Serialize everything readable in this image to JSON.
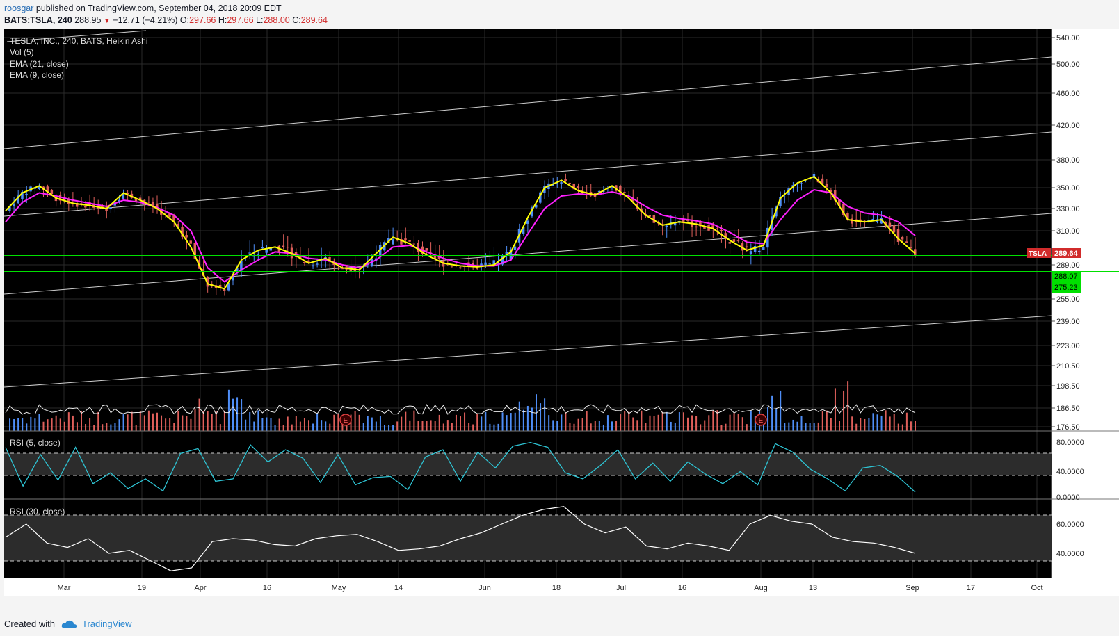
{
  "header": {
    "username": "roosgar",
    "published_text": "published on TradingView.com, September 04, 2018 20:09 EDT",
    "symbol": "BATS:TSLA, 240",
    "last": "288.95",
    "change": "−12.71 (−4.21%)",
    "o_label": "O:",
    "o_value": "297.66",
    "h_label": "H:",
    "h_value": "297.66",
    "l_label": "L:",
    "l_value": "288.00",
    "c_label": "C:",
    "c_value": "289.64"
  },
  "legend": {
    "main": "TESLA, INC., 240, BATS, Heikin Ashi",
    "vol": "Vol (5)",
    "ema21": "EMA (21, close)",
    "ema9": "EMA (9, close)",
    "rsi5": "RSI (5, close)",
    "rsi30": "RSI (30, close)"
  },
  "colors": {
    "background": "#000000",
    "up": "#4f8ef7",
    "down": "#e0605b",
    "ema9": "#ffff00",
    "ema21": "#ff20ff",
    "support": "#00e000",
    "rsi5": "#2ec4d4",
    "rsi30": "#ffffff"
  },
  "price_axis": {
    "ticks": [
      "540.00",
      "500.00",
      "460.00",
      "420.00",
      "380.00",
      "350.00",
      "330.00",
      "310.00",
      "289.00",
      "255.00",
      "239.00",
      "223.00",
      "210.50",
      "198.50",
      "186.50",
      "176.50"
    ],
    "tag_symbol": "TSLA",
    "tag_price": "289.64",
    "green_tag_1": "288.07",
    "green_tag_2": "275.23"
  },
  "rsi5_axis": [
    "80.0000",
    "40.0000",
    "0.0000"
  ],
  "rsi30_axis": [
    "60.0000",
    "40.0000"
  ],
  "time_axis": [
    "Mar",
    "19",
    "Apr",
    "16",
    "May",
    "14",
    "Jun",
    "18",
    "Jul",
    "16",
    "Aug",
    "13",
    "Sep",
    "17",
    "Oct"
  ],
  "earnings_marker": "E",
  "chart_data": {
    "type": "candlestick",
    "title": "TESLA, INC., 240, BATS, Heikin Ashi",
    "series": [
      {
        "name": "EMA (9, close)",
        "values": [
          328,
          345,
          352,
          340,
          335,
          333,
          330,
          345,
          338,
          330,
          318,
          300,
          270,
          265,
          292,
          298,
          300,
          296,
          290,
          293,
          286,
          284,
          296,
          306,
          302,
          295,
          290,
          288,
          287,
          289,
          297,
          322,
          350,
          358,
          347,
          343,
          352,
          340,
          324,
          315,
          318,
          316,
          312,
          304,
          298,
          301,
          340,
          355,
          362,
          345,
          320,
          318,
          320,
          305,
          296
        ]
      },
      {
        "name": "EMA (21, close)",
        "values": [
          318,
          336,
          345,
          342,
          338,
          335,
          332,
          338,
          336,
          331,
          324,
          310,
          286,
          272,
          284,
          292,
          297,
          296,
          293,
          292,
          289,
          286,
          292,
          300,
          301,
          297,
          293,
          290,
          288,
          288,
          292,
          308,
          330,
          342,
          344,
          343,
          346,
          342,
          332,
          324,
          321,
          319,
          316,
          309,
          303,
          302,
          320,
          338,
          348,
          345,
          332,
          326,
          324,
          318,
          307
        ]
      },
      {
        "name": "RSI (5, close)",
        "values": [
          82,
          18,
          70,
          28,
          82,
          22,
          40,
          14,
          30,
          10,
          72,
          80,
          26,
          30,
          86,
          58,
          78,
          64,
          24,
          70,
          20,
          32,
          34,
          12,
          66,
          78,
          26,
          74,
          48,
          84,
          90,
          82,
          40,
          30,
          52,
          78,
          30,
          56,
          26,
          58,
          38,
          22,
          42,
          20,
          88,
          74,
          46,
          30,
          10,
          48,
          52,
          34,
          8
        ]
      },
      {
        "name": "RSI (30, close)",
        "values": [
          51,
          60,
          47,
          44,
          50,
          40,
          42,
          35,
          28,
          30,
          48,
          50,
          49,
          46,
          45,
          50,
          52,
          53,
          48,
          42,
          43,
          45,
          50,
          54,
          60,
          66,
          70,
          72,
          60,
          54,
          58,
          45,
          43,
          47,
          45,
          42,
          60,
          66,
          62,
          60,
          51,
          48,
          47,
          44,
          40
        ]
      }
    ],
    "support_levels": [
      288.07,
      275.23
    ],
    "last_price": 289.64,
    "ylim": [
      176.5,
      545
    ],
    "x_range": [
      "2018-02-19",
      "2018-10-02"
    ]
  }
}
